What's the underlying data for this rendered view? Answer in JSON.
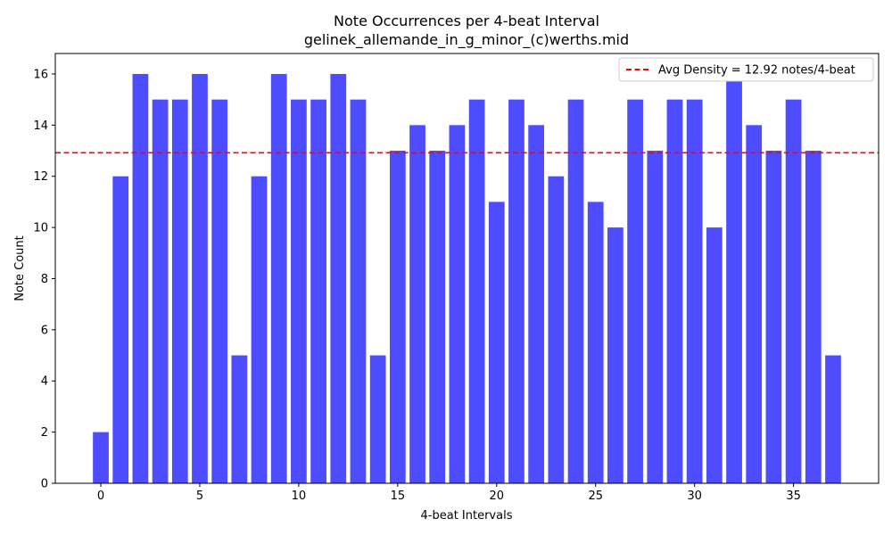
{
  "chart_data": {
    "type": "bar",
    "title": "Note Occurrences per 4-beat Interval",
    "subtitle": "gelinek_allemande_in_g_minor_(c)werths.mid",
    "xlabel": "4-beat Intervals",
    "ylabel": "Note Count",
    "x": [
      0,
      1,
      2,
      3,
      4,
      5,
      6,
      7,
      8,
      9,
      10,
      11,
      12,
      13,
      14,
      15,
      16,
      17,
      18,
      19,
      20,
      21,
      22,
      23,
      24,
      25,
      26,
      27,
      28,
      29,
      30,
      31,
      32,
      33,
      34,
      35,
      36,
      37
    ],
    "values": [
      2,
      12,
      16,
      15,
      15,
      16,
      15,
      5,
      12,
      16,
      15,
      15,
      16,
      15,
      5,
      13,
      14,
      13,
      14,
      15,
      11,
      15,
      14,
      12,
      15,
      11,
      10,
      15,
      13,
      15,
      15,
      10,
      16,
      14,
      13,
      15,
      13,
      5
    ],
    "xlim": [
      -2.3,
      39.3
    ],
    "ylim": [
      0,
      16.8
    ],
    "xticks": [
      0,
      5,
      10,
      15,
      20,
      25,
      30,
      35
    ],
    "yticks": [
      0,
      2,
      4,
      6,
      8,
      10,
      12,
      14,
      16
    ],
    "bar_color": "#4d4dff",
    "average_line": {
      "value": 12.92,
      "color": "#ff0000",
      "style": "dashed",
      "label": "Avg Density = 12.92 notes/4-beat"
    },
    "legend_position": "top-right",
    "grid": false
  }
}
